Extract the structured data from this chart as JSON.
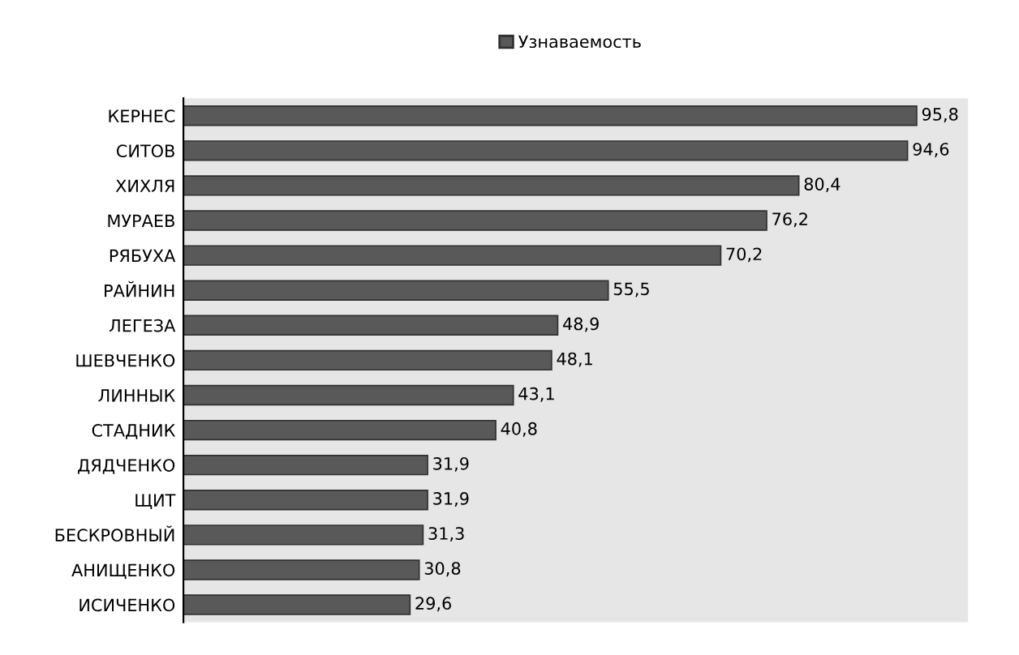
{
  "chart_data": {
    "type": "bar",
    "orientation": "horizontal",
    "categories": [
      "КЕРНЕС",
      "СИТОВ",
      "ХИХЛЯ",
      "МУРАЕВ",
      "РЯБУХА",
      "РАЙНИН",
      "ЛЕГЕЗА",
      "ШЕВЧЕНКО",
      "ЛИННЫК",
      "СТАДНИК",
      "ДЯДЧЕНКО",
      "ЩИТ",
      "БЕСКРОВНЫЙ",
      "АНИЩЕНКО",
      "ИСИЧЕНКО"
    ],
    "series": [
      {
        "name": "Узнаваемость",
        "color": "#595959",
        "values": [
          95.8,
          94.6,
          80.4,
          76.2,
          70.2,
          55.5,
          48.9,
          48.1,
          43.1,
          40.8,
          31.9,
          31.9,
          31.3,
          30.8,
          29.6
        ],
        "value_labels": [
          "95,8",
          "94,6",
          "80,4",
          "76,2",
          "70,2",
          "55,5",
          "48,9",
          "48,1",
          "43,1",
          "40,8",
          "31,9",
          "31,9",
          "31,3",
          "30,8",
          "29,6"
        ]
      }
    ],
    "legend": "top",
    "grid": false
  }
}
